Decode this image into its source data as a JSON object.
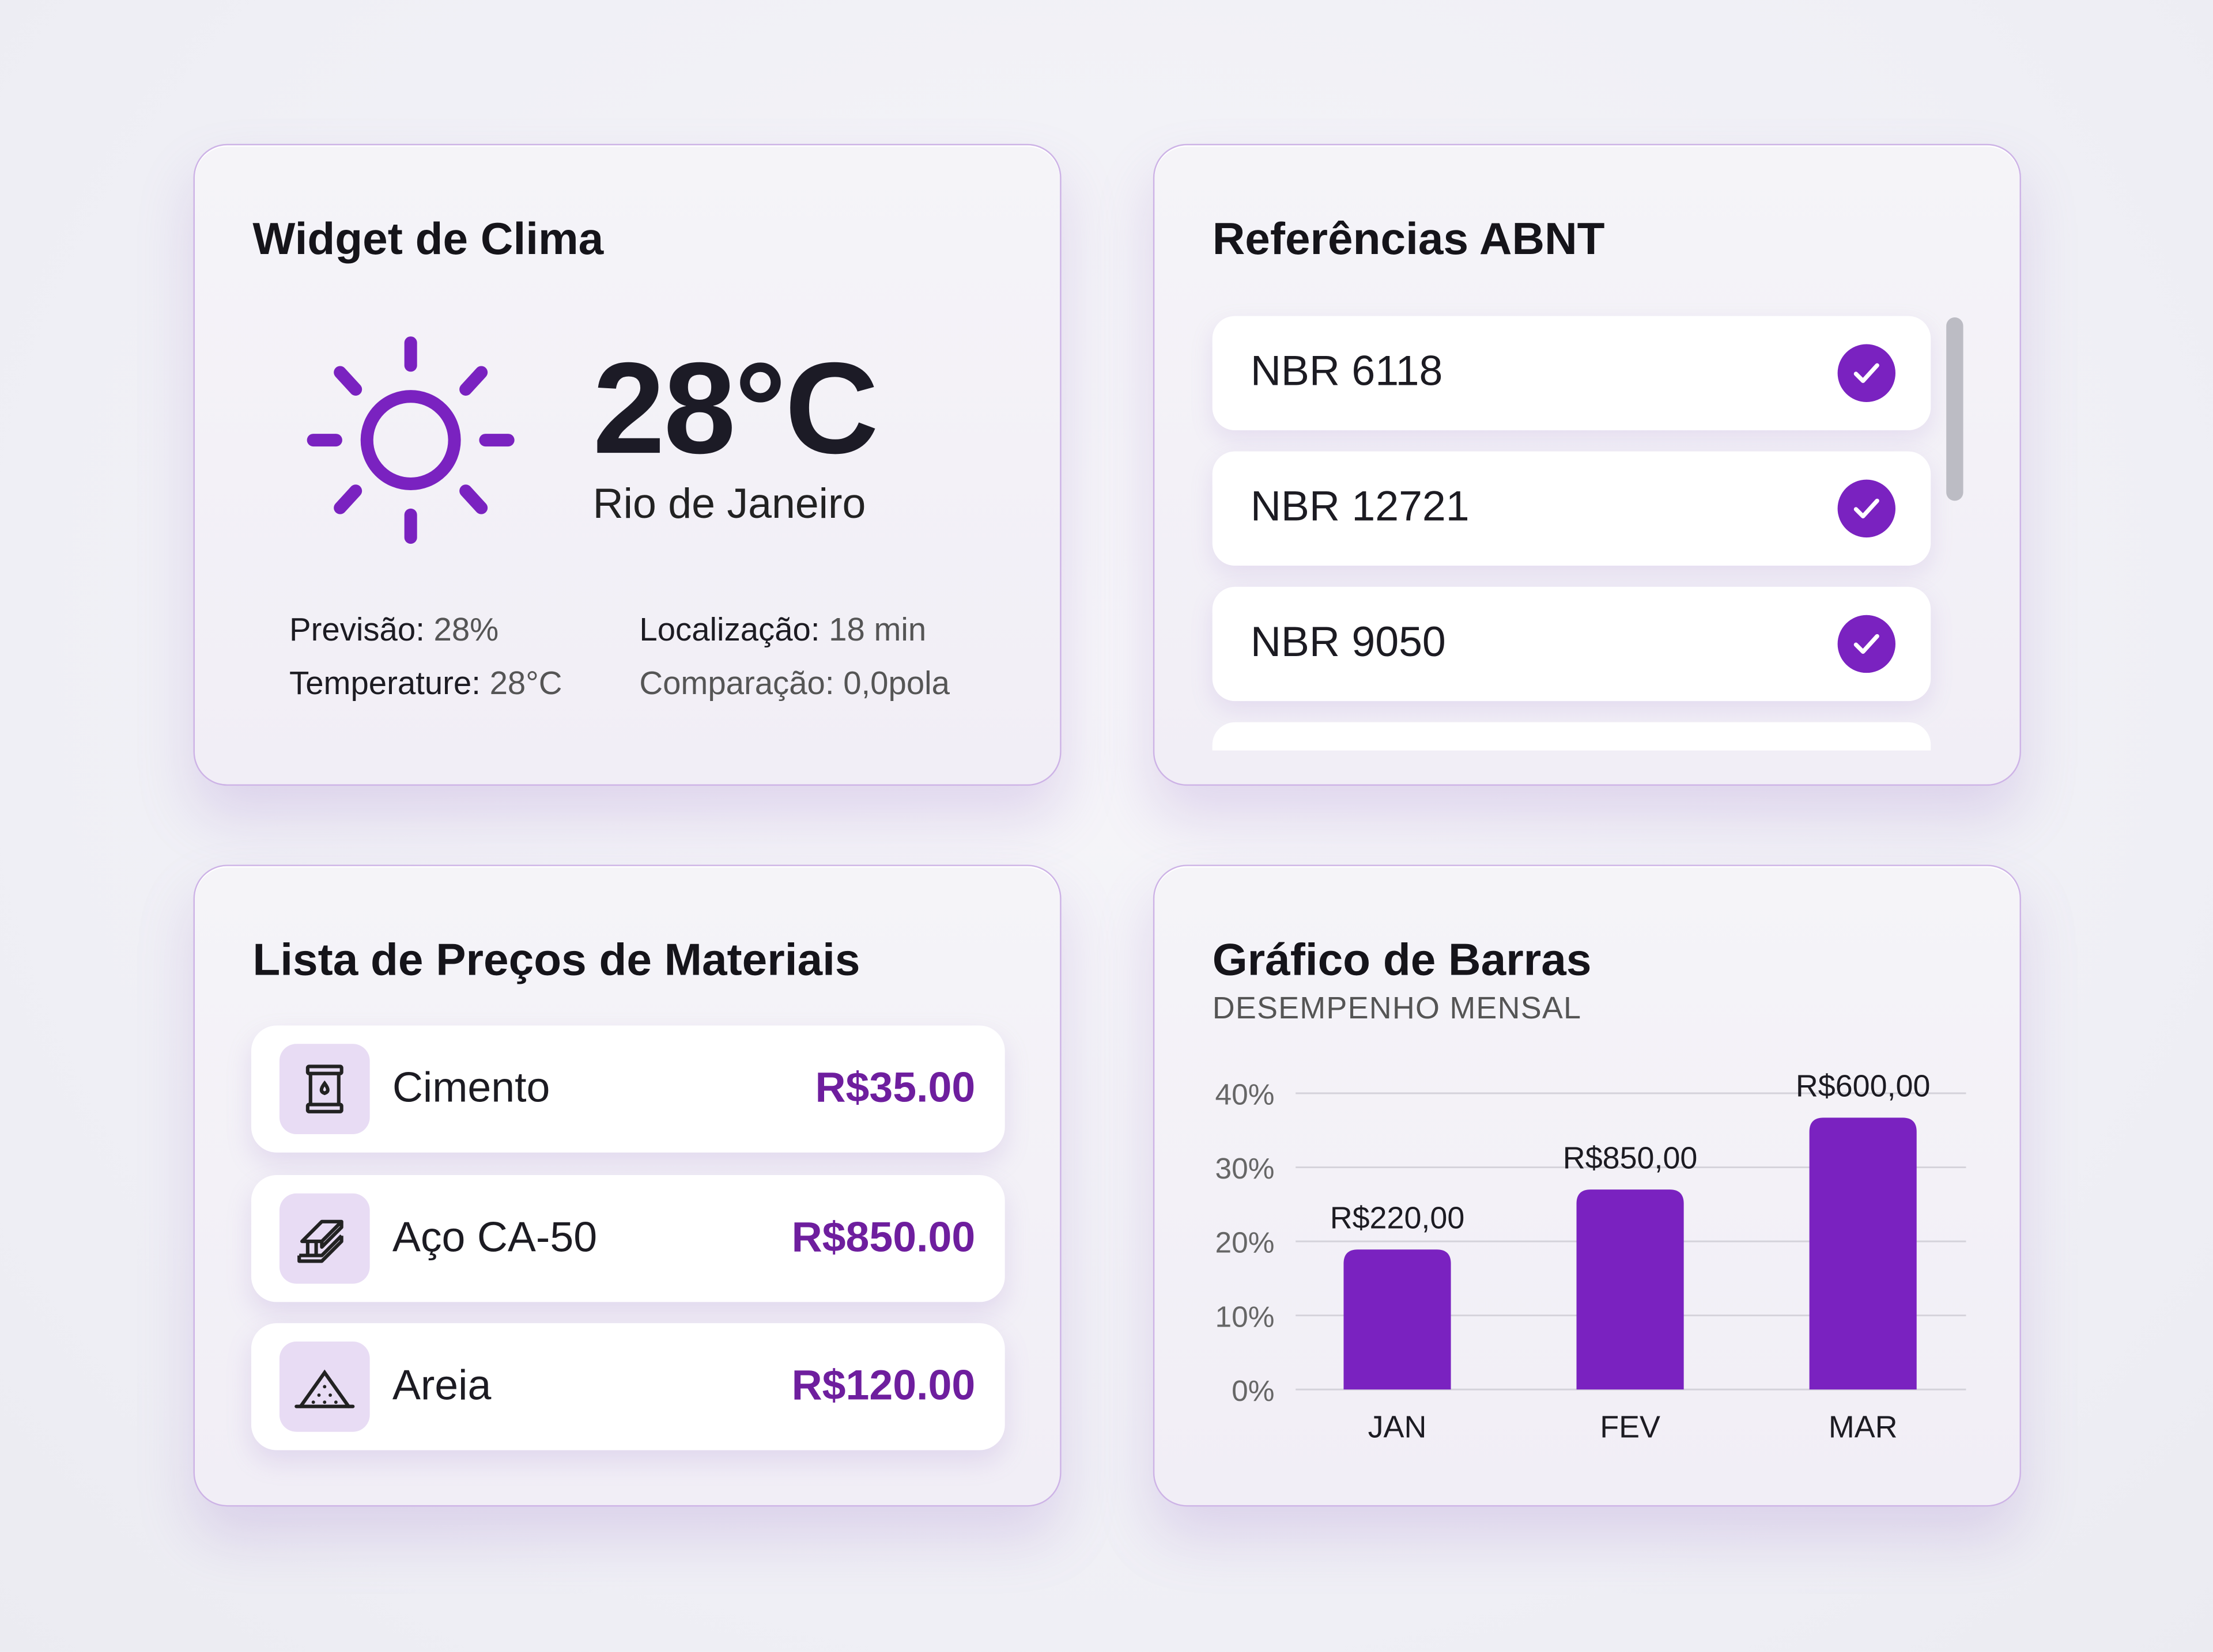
{
  "accent": "#7a22c0",
  "weather": {
    "title": "Widget de Clima",
    "icon": "sun-icon",
    "temperature": "28°C",
    "city": "Rio de Janeiro",
    "stats": [
      {
        "label": "Previsão:",
        "value": "28%"
      },
      {
        "label": "Temperature:",
        "value": "28°C"
      },
      {
        "label": "Localização:",
        "value": "18 min"
      },
      {
        "label": "Comparação:",
        "value": "0,0pola"
      }
    ]
  },
  "abnt": {
    "title": "Referências ABNT",
    "items": [
      {
        "label": "NBR 6118",
        "checked": true
      },
      {
        "label": "NBR 12721",
        "checked": true
      },
      {
        "label": "NBR 9050",
        "checked": true
      }
    ]
  },
  "materials": {
    "title": "Lista de Preços de Materiais",
    "items": [
      {
        "name": "Cimento",
        "price": "R$35.00",
        "icon": "cement-bag-icon"
      },
      {
        "name": "Aço CA-50",
        "price": "R$850.00",
        "icon": "steel-beam-icon"
      },
      {
        "name": "Areia",
        "price": "R$120.00",
        "icon": "sand-pile-icon"
      }
    ]
  },
  "chart_data": {
    "type": "bar",
    "title": "Gráfico de Barras",
    "subtitle": "DESEMPENHO MENSAL",
    "categories": [
      "JAN",
      "FEV",
      "MAR"
    ],
    "values": [
      18.9,
      27.0,
      36.7
    ],
    "data_labels": [
      "R$220,00",
      "R$850,00",
      "R$600,00"
    ],
    "yticks": [
      "0%",
      "10%",
      "20%",
      "30%",
      "40%"
    ],
    "ylim": [
      0,
      40
    ],
    "grid": true,
    "color": "#7a22c0"
  }
}
